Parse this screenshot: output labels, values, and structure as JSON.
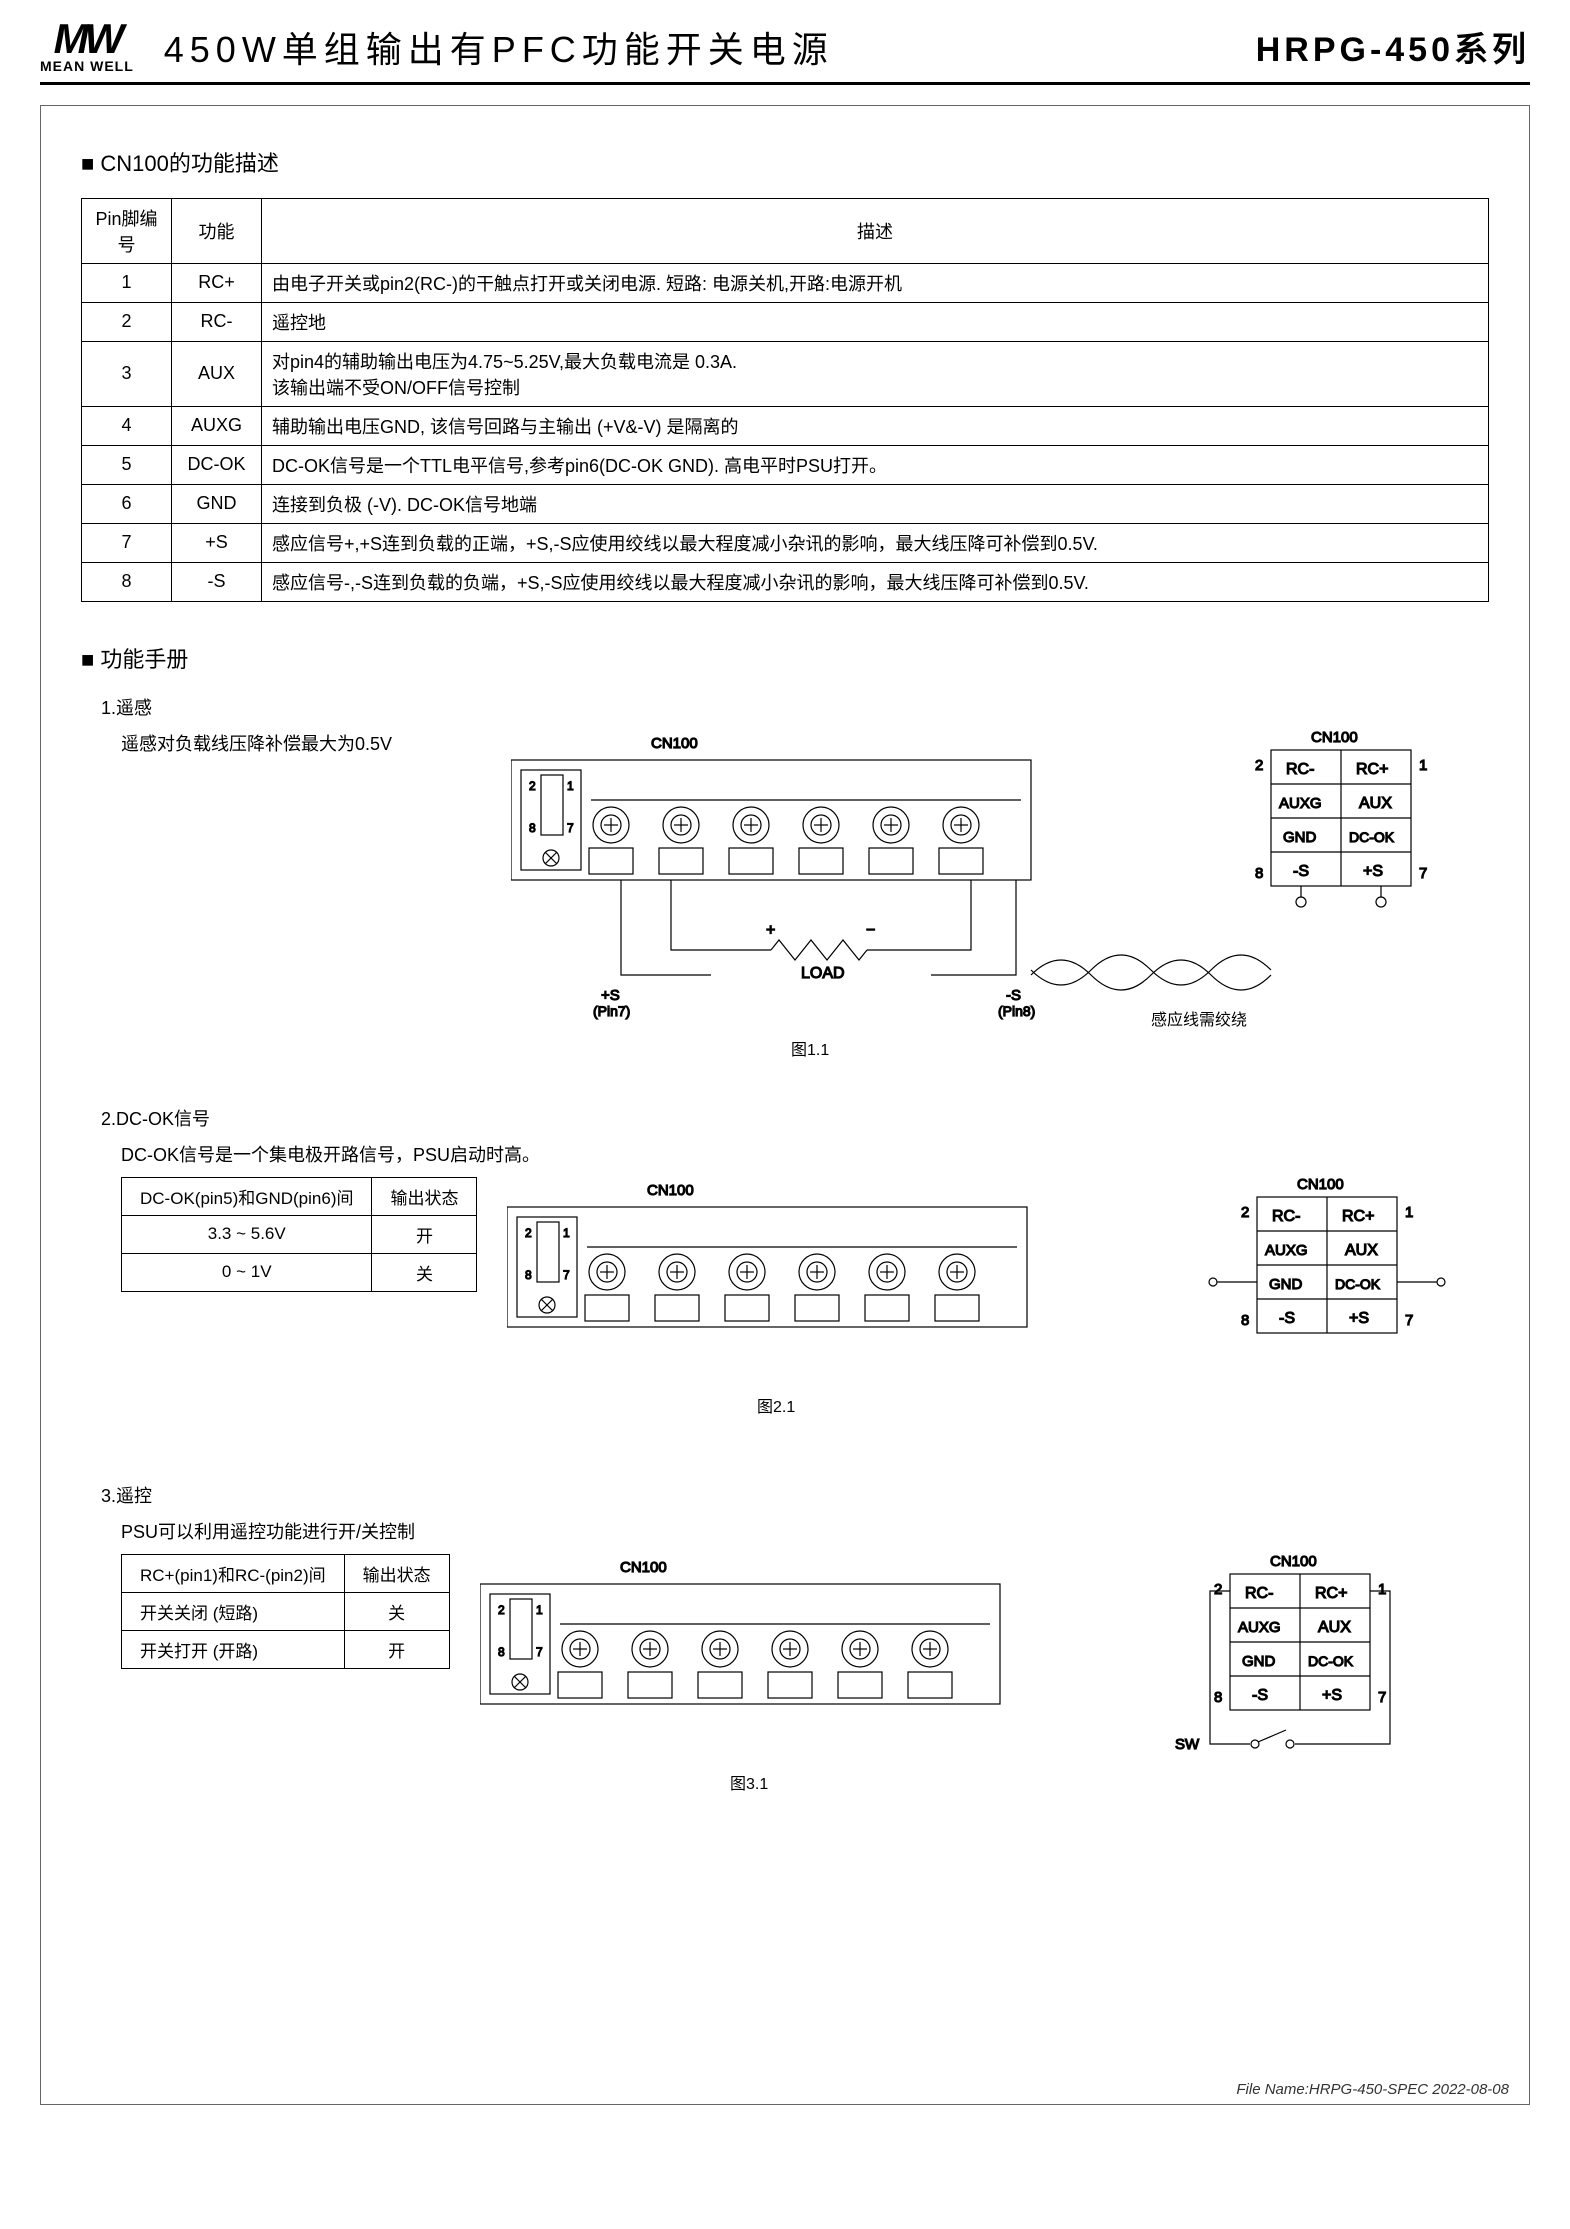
{
  "header": {
    "logo_mw": "MW",
    "logo_brand": "MEAN WELL",
    "title": "450W单组输出有PFC功能开关电源",
    "series": "HRPG-450系列"
  },
  "section1": {
    "title": "CN100的功能描述",
    "columns": [
      "Pin脚编号",
      "功能",
      "描述"
    ],
    "rows": [
      [
        "1",
        "RC+",
        "由电子开关或pin2(RC-)的干触点打开或关闭电源. 短路: 电源关机,开路:电源开机"
      ],
      [
        "2",
        "RC-",
        "遥控地"
      ],
      [
        "3",
        "AUX",
        "对pin4的辅助输出电压为4.75~5.25V,最大负载电流是 0.3A.\n该输出端不受ON/OFF信号控制"
      ],
      [
        "4",
        "AUXG",
        "辅助输出电压GND, 该信号回路与主输出 (+V&-V) 是隔离的"
      ],
      [
        "5",
        "DC-OK",
        "DC-OK信号是一个TTL电平信号,参考pin6(DC-OK GND). 高电平时PSU打开。"
      ],
      [
        "6",
        "GND",
        "连接到负极 (-V). DC-OK信号地端"
      ],
      [
        "7",
        "+S",
        "感应信号+,+S连到负载的正端，+S,-S应使用绞线以最大程度减小杂讯的影响，最大线压降可补偿到0.5V."
      ],
      [
        "8",
        "-S",
        "感应信号-,-S连到负载的负端，+S,-S应使用绞线以最大程度减小杂讯的影响，最大线压降可补偿到0.5V."
      ]
    ]
  },
  "section2": {
    "title": "功能手册",
    "item1": {
      "num": "1.",
      "name": "遥感",
      "desc": "遥感对负载线压降补偿最大为0.5V",
      "fig": "图1.1",
      "twisted": "感应线需绞绕"
    },
    "item2": {
      "num": "2.",
      "name": "DC-OK信号",
      "desc": "DC-OK信号是一个集电极开路信号，PSU启动时高。",
      "table": {
        "headers": [
          "DC-OK(pin5)和GND(pin6)间",
          "输出状态"
        ],
        "rows": [
          [
            "3.3 ~ 5.6V",
            "开"
          ],
          [
            "0 ~ 1V",
            "关"
          ]
        ]
      },
      "fig": "图2.1"
    },
    "item3": {
      "num": "3.",
      "name": "遥控",
      "desc": "PSU可以利用遥控功能进行开/关控制",
      "table": {
        "headers": [
          "RC+(pin1)和RC-(pin2)间",
          "输出状态"
        ],
        "rows": [
          [
            "开关关闭 (短路)",
            "关"
          ],
          [
            "开关打开 (开路)",
            "开"
          ]
        ]
      },
      "fig": "图3.1"
    }
  },
  "cn100_pins": {
    "label": "CN100",
    "left": [
      "RC-",
      "AUXG",
      "GND",
      "-S"
    ],
    "right": [
      "RC+",
      "AUX",
      "DC-OK",
      "+S"
    ],
    "left_nums": [
      "2",
      "",
      "",
      "8"
    ],
    "right_nums": [
      "1",
      "",
      "",
      "7"
    ],
    "sw": "SW"
  },
  "load_labels": {
    "plusS": "+S\n(Pin7)",
    "minusS": "-S\n(Pin8)",
    "load": "LOAD",
    "plus": "+",
    "minus": "−"
  },
  "footer": "File Name:HRPG-450-SPEC   2022-08-08"
}
